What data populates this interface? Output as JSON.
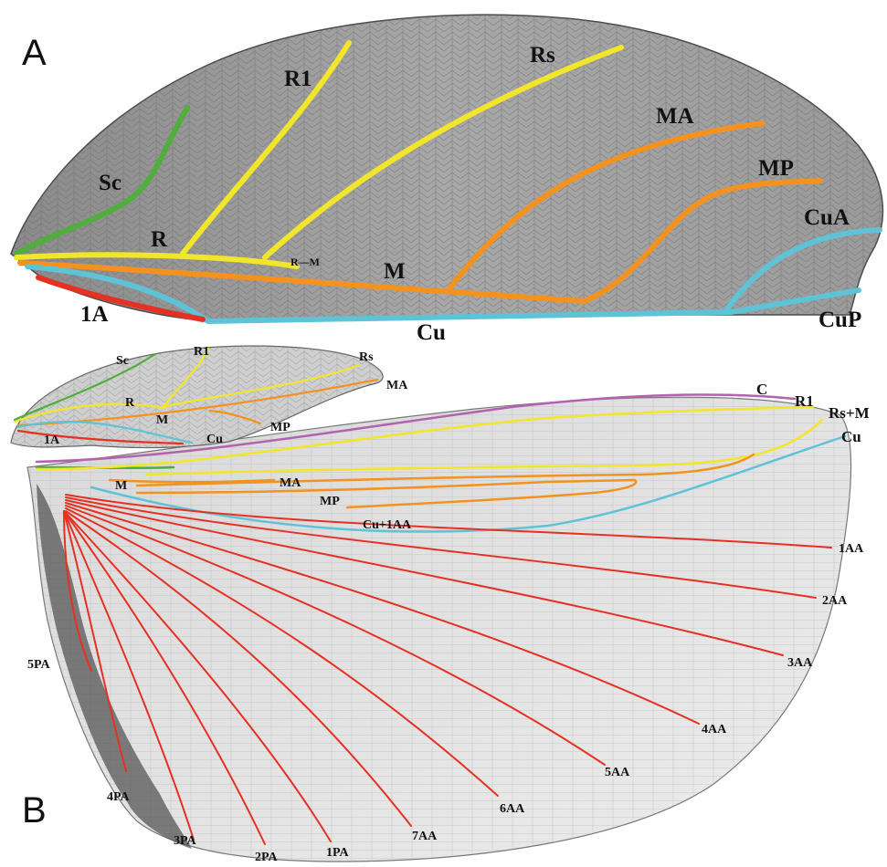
{
  "panels": {
    "a_label": "A",
    "b_label": "B"
  },
  "colors": {
    "sc": "#4fae3c",
    "r": "#f2e62a",
    "m": "#f3921e",
    "cu": "#5ec3d6",
    "anal": "#e53123",
    "c": "#b560b0"
  },
  "panel_a": {
    "labels": {
      "sc": "Sc",
      "r1": "R1",
      "rs": "Rs",
      "ma": "MA",
      "mp": "MP",
      "cua": "CuA",
      "r": "R",
      "rm": "R—M",
      "m": "M",
      "a1": "1A",
      "cu": "Cu",
      "cup": "CuP"
    }
  },
  "panel_b": {
    "forewing_labels": {
      "sc": "Sc",
      "r1": "R1",
      "rs": "Rs",
      "ma": "MA",
      "r": "R",
      "m": "M",
      "mp": "MP",
      "a1": "1A",
      "cu": "Cu"
    },
    "hindwing_labels": {
      "c": "C",
      "r1": "R1",
      "rsm": "Rs+M",
      "cu": "Cu",
      "m": "M",
      "ma": "MA",
      "mp": "MP",
      "cu1aa": "Cu+1AA",
      "aa1": "1AA",
      "aa2": "2AA",
      "aa3": "3AA",
      "aa4": "4AA",
      "aa5": "5AA",
      "aa6": "6AA",
      "aa7": "7AA",
      "pa1": "1PA",
      "pa2": "2PA",
      "pa3": "3PA",
      "pa4": "4PA",
      "pa5": "5PA"
    }
  }
}
